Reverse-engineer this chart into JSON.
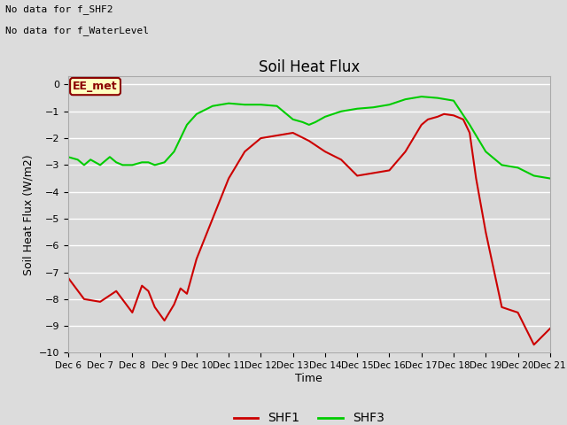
{
  "title": "Soil Heat Flux",
  "ylabel": "Soil Heat Flux (W/m2)",
  "xlabel": "Time",
  "top_note1": "No data for f_SHF2",
  "top_note2": "No data for f_WaterLevel",
  "annotation_box": "EE_met",
  "ylim": [
    -10.0,
    0.3
  ],
  "yticks": [
    0.0,
    -1.0,
    -2.0,
    -3.0,
    -4.0,
    -5.0,
    -6.0,
    -7.0,
    -8.0,
    -9.0,
    -10.0
  ],
  "xtick_labels": [
    "Dec 6",
    "Dec 7",
    "Dec 8",
    "Dec 9",
    "Dec 10",
    "Dec 11",
    "Dec 12",
    "Dec 13",
    "Dec 14",
    "Dec 15",
    "Dec 16",
    "Dec 17",
    "Dec 18",
    "Dec 19",
    "Dec 20",
    "Dec 21"
  ],
  "background_color": "#dcdcdc",
  "plot_bg_color": "#d8d8d8",
  "grid_color": "#ffffff",
  "shf1_color": "#cc0000",
  "shf3_color": "#00cc00",
  "legend_shf1": "SHF1",
  "legend_shf3": "SHF3",
  "shf1_x": [
    0,
    0.5,
    1.0,
    1.5,
    2.0,
    2.3,
    2.5,
    2.7,
    3.0,
    3.3,
    3.5,
    3.7,
    4.0,
    4.5,
    5.0,
    5.5,
    6.0,
    6.5,
    7.0,
    7.5,
    8.0,
    8.5,
    9.0,
    9.5,
    10.0,
    10.5,
    11.0,
    11.2,
    11.5,
    11.7,
    12.0,
    12.3,
    12.5,
    12.7,
    13.0,
    13.5,
    14.0,
    14.5,
    15.0
  ],
  "shf1_y": [
    -7.2,
    -8.0,
    -8.1,
    -7.7,
    -8.5,
    -7.5,
    -7.7,
    -8.3,
    -8.8,
    -8.2,
    -7.6,
    -7.8,
    -6.5,
    -5.0,
    -3.5,
    -2.5,
    -2.0,
    -1.9,
    -1.8,
    -2.1,
    -2.5,
    -2.8,
    -3.4,
    -3.3,
    -3.2,
    -2.5,
    -1.5,
    -1.3,
    -1.2,
    -1.1,
    -1.15,
    -1.3,
    -1.8,
    -3.5,
    -5.5,
    -8.3,
    -8.5,
    -9.7,
    -9.1
  ],
  "shf3_x": [
    0,
    0.3,
    0.5,
    0.7,
    1.0,
    1.3,
    1.5,
    1.7,
    2.0,
    2.3,
    2.5,
    2.7,
    3.0,
    3.3,
    3.5,
    3.7,
    4.0,
    4.5,
    5.0,
    5.5,
    6.0,
    6.5,
    7.0,
    7.3,
    7.5,
    7.7,
    8.0,
    8.5,
    9.0,
    9.5,
    10.0,
    10.5,
    11.0,
    11.5,
    12.0,
    12.5,
    13.0,
    13.5,
    14.0,
    14.5,
    15.0
  ],
  "shf3_y": [
    -2.7,
    -2.8,
    -3.0,
    -2.8,
    -3.0,
    -2.7,
    -2.9,
    -3.0,
    -3.0,
    -2.9,
    -2.9,
    -3.0,
    -2.9,
    -2.5,
    -2.0,
    -1.5,
    -1.1,
    -0.8,
    -0.7,
    -0.75,
    -0.75,
    -0.8,
    -1.3,
    -1.4,
    -1.5,
    -1.4,
    -1.2,
    -1.0,
    -0.9,
    -0.85,
    -0.75,
    -0.55,
    -0.45,
    -0.5,
    -0.6,
    -1.5,
    -2.5,
    -3.0,
    -3.1,
    -3.4,
    -3.5
  ]
}
